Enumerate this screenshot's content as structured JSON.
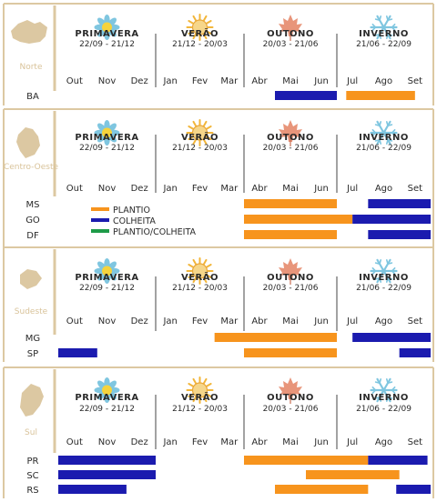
{
  "chart_data": {
    "type": "gantt",
    "title": "",
    "seasons": [
      {
        "name": "PRIMAVERA",
        "dates": "22/09 - 21/12",
        "icon": "flower-icon"
      },
      {
        "name": "VERÃO",
        "dates": "21/12 - 20/03",
        "icon": "sun-icon"
      },
      {
        "name": "OUTONO",
        "dates": "20/03 - 21/06",
        "icon": "maple-leaf-icon"
      },
      {
        "name": "INVERNO",
        "dates": "21/06 - 22/09",
        "icon": "snowflake-icon"
      }
    ],
    "months": [
      "Out",
      "Nov",
      "Dez",
      "Jan",
      "Fev",
      "Mar",
      "Abr",
      "Mai",
      "Jun",
      "Jul",
      "Ago",
      "Set"
    ],
    "legend": [
      {
        "label": "PLANTIO",
        "color": "#f7941d"
      },
      {
        "label": "COLHEITA",
        "color": "#1b1baf"
      },
      {
        "label": "PLANTIO/COLHEITA",
        "color": "#1e9b48"
      }
    ],
    "colors": {
      "plantio": "#f7941d",
      "colheita": "#1b1baf",
      "region_shape": "#dcc8a2",
      "panel_border": "#dcc8a2",
      "region_label": "#d9c39a"
    },
    "regions": [
      {
        "name": "Norte",
        "states": [
          {
            "label": "BA",
            "bars": [
              {
                "kind": "colheita",
                "start": 7.0,
                "end": 9.0
              },
              {
                "kind": "plantio",
                "start": 9.3,
                "end": 11.5
              }
            ]
          }
        ]
      },
      {
        "name": "Centro-Oeste",
        "states": [
          {
            "label": "MS",
            "bars": [
              {
                "kind": "plantio",
                "start": 6.0,
                "end": 9.0
              },
              {
                "kind": "colheita",
                "start": 10.0,
                "end": 12.0
              }
            ]
          },
          {
            "label": "GO",
            "bars": [
              {
                "kind": "plantio",
                "start": 6.0,
                "end": 9.5
              },
              {
                "kind": "colheita",
                "start": 9.5,
                "end": 12.0
              }
            ]
          },
          {
            "label": "DF",
            "bars": [
              {
                "kind": "plantio",
                "start": 6.0,
                "end": 9.0
              },
              {
                "kind": "colheita",
                "start": 10.0,
                "end": 12.0
              }
            ]
          }
        ]
      },
      {
        "name": "Sudeste",
        "states": [
          {
            "label": "MG",
            "bars": [
              {
                "kind": "plantio",
                "start": 5.0,
                "end": 9.0
              },
              {
                "kind": "colheita",
                "start": 9.5,
                "end": 12.0
              }
            ]
          },
          {
            "label": "SP",
            "bars": [
              {
                "kind": "colheita",
                "start": 0.0,
                "end": 1.2
              },
              {
                "kind": "plantio",
                "start": 6.0,
                "end": 9.0
              },
              {
                "kind": "colheita",
                "start": 11.0,
                "end": 12.0
              }
            ]
          }
        ]
      },
      {
        "name": "Sul",
        "states": [
          {
            "label": "PR",
            "bars": [
              {
                "kind": "colheita",
                "start": 0.0,
                "end": 3.0
              },
              {
                "kind": "plantio",
                "start": 6.0,
                "end": 10.0
              },
              {
                "kind": "colheita",
                "start": 10.0,
                "end": 11.9
              }
            ]
          },
          {
            "label": "SC",
            "bars": [
              {
                "kind": "colheita",
                "start": 0.0,
                "end": 3.0
              },
              {
                "kind": "plantio",
                "start": 8.0,
                "end": 11.0
              }
            ]
          },
          {
            "label": "RS",
            "bars": [
              {
                "kind": "colheita",
                "start": 0.0,
                "end": 2.1
              },
              {
                "kind": "plantio",
                "start": 7.0,
                "end": 10.0
              },
              {
                "kind": "colheita",
                "start": 10.9,
                "end": 12.0
              }
            ]
          }
        ]
      }
    ]
  }
}
